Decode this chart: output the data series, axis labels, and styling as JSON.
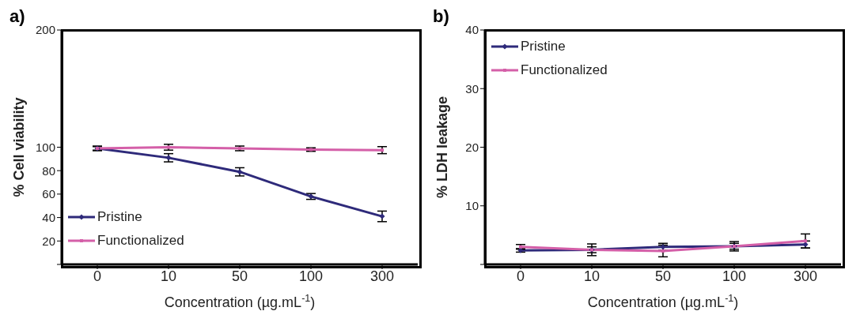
{
  "chart_data": [
    {
      "type": "line",
      "title": "a)",
      "xlabel": "Concentration (µg.mL$^{-1}$)",
      "ylabel": "% Cell viability",
      "categories": [
        "0",
        "10",
        "50",
        "100",
        "300"
      ],
      "ylim": [
        0,
        200
      ],
      "yticks": [
        {
          "value": 0,
          "label": null
        },
        20,
        40,
        60,
        80,
        100,
        200
      ],
      "legend": "bottom left",
      "series": [
        {
          "name": "Pristine",
          "color": "#2e2a7a",
          "marker": "diamond",
          "values": [
            99,
            91,
            79,
            58,
            41
          ],
          "errors": [
            1.5,
            3.5,
            3.5,
            2.5,
            4.5
          ]
        },
        {
          "name": "Functionalized",
          "color": "#d45fa8",
          "marker": "square",
          "values": [
            99,
            100,
            99,
            98,
            97.5
          ],
          "errors": [
            2,
            2.5,
            2,
            1.5,
            3
          ]
        }
      ]
    },
    {
      "type": "line",
      "title": "b)",
      "xlabel": "Concentration (µg.mL$^{-1}$)",
      "ylabel": "% LDH leakage",
      "categories": [
        "0",
        "10",
        "50",
        "100",
        "300"
      ],
      "ylim": [
        0,
        40
      ],
      "yticks": [
        {
          "value": 0,
          "label": null
        },
        10,
        20,
        30,
        40
      ],
      "legend": "top left",
      "series": [
        {
          "name": "Pristine",
          "color": "#2e2a7a",
          "marker": "diamond",
          "values": [
            2.4,
            2.5,
            3,
            3.1,
            3.4
          ],
          "errors": [
            0.3,
            0.5,
            0.6,
            0.5,
            0.6
          ]
        },
        {
          "name": "Functionalized",
          "color": "#d45fa8",
          "marker": "square",
          "values": [
            3,
            2.5,
            2.3,
            3.1,
            4
          ],
          "errors": [
            0.4,
            1,
            1,
            0.8,
            1.2
          ]
        }
      ]
    }
  ]
}
